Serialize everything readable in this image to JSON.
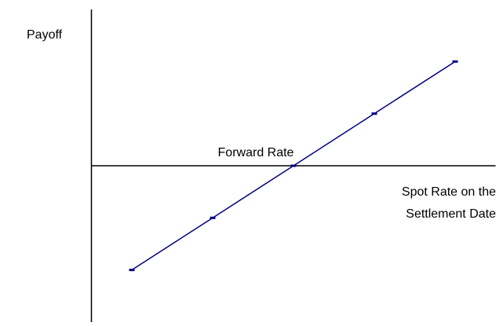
{
  "chart_data": {
    "type": "line",
    "y_label": "Payoff",
    "annotation": "Forward Rate",
    "x_label": [
      "Spot Rate on the",
      "Settlement Date"
    ],
    "x": [
      1,
      2,
      3,
      4,
      5
    ],
    "values": [
      -2,
      -1,
      0,
      1,
      2
    ],
    "color": "#000080",
    "axis_color": "#000000",
    "xlim": [
      0.5,
      5.5
    ],
    "ylim": [
      -3,
      3
    ]
  }
}
